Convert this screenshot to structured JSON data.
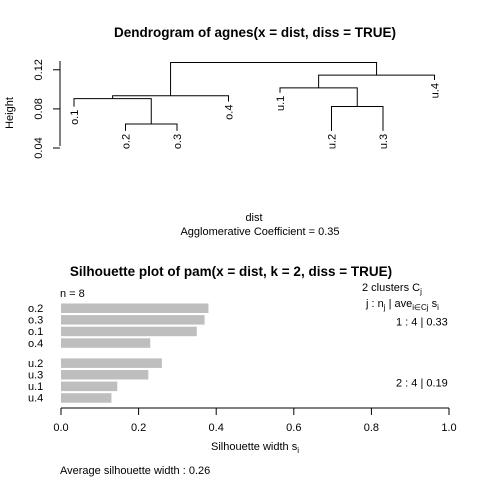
{
  "chart_data": [
    {
      "type": "dendrogram",
      "title": "Dendrogram of  agnes(x = dist, diss = TRUE)",
      "ylabel": "Height",
      "xlabel": "dist",
      "sub": "Agglomerative Coefficient =  0.35",
      "yticks": [
        "0.04",
        "0.08",
        "0.12"
      ],
      "ylim": [
        0.04,
        0.13
      ],
      "leaves": [
        {
          "label": "o.1",
          "h": 0.0823
        },
        {
          "label": "o.2",
          "h": 0.0575
        },
        {
          "label": "o.3",
          "h": 0.0575
        },
        {
          "label": "o.4",
          "h": 0.0875
        },
        {
          "label": "u.1",
          "h": 0.0965
        },
        {
          "label": "u.2",
          "h": 0.0575
        },
        {
          "label": "u.3",
          "h": 0.0575
        },
        {
          "label": "u.4",
          "h": 0.1095
        }
      ],
      "merges": [
        {
          "a": "L1",
          "b": "L2",
          "height": 0.0645,
          "id": "m1"
        },
        {
          "a": "L5",
          "b": "L6",
          "height": 0.0825,
          "id": "m2"
        },
        {
          "a": "L0",
          "b": "m1",
          "height": 0.0905,
          "id": "m3"
        },
        {
          "a": "L4",
          "b": "m2",
          "height": 0.1015,
          "id": "m4"
        },
        {
          "a": "m3",
          "b": "L3",
          "height": 0.0935,
          "id": "m5"
        },
        {
          "a": "m4",
          "b": "L7",
          "height": 0.1145,
          "id": "m6"
        },
        {
          "a": "m5",
          "b": "m6",
          "height": 0.1275,
          "id": "m7"
        }
      ]
    },
    {
      "type": "bar",
      "orientation": "horizontal",
      "title": "Silhouette plot of pam(x = dist, k = 2, diss = TRUE)",
      "n_label": "n = 8",
      "clusters_label": "2  clusters  C",
      "clusters_sub": "j",
      "header_label": "j :  n",
      "header_j": "j",
      "header_ave": " | ave",
      "header_sub": "i∈Cj",
      "header_s": "  s",
      "header_si": "i",
      "categories": [
        "o.2",
        "o.3",
        "o.1",
        "o.4",
        "u.2",
        "u.3",
        "u.1",
        "u.4"
      ],
      "values": [
        0.38,
        0.37,
        0.35,
        0.23,
        0.26,
        0.225,
        0.145,
        0.13
      ],
      "groups": [
        {
          "members": [
            "o.2",
            "o.3",
            "o.1",
            "o.4"
          ],
          "label": "1 :   4  |  0.33"
        },
        {
          "members": [
            "u.2",
            "u.3",
            "u.1",
            "u.4"
          ],
          "label": "2 :   4  |  0.19"
        }
      ],
      "xlabel": "Silhouette width s",
      "xlabel_sub": "i",
      "xlim": [
        0,
        1
      ],
      "xticks": [
        "0.0",
        "0.2",
        "0.4",
        "0.6",
        "0.8",
        "1.0"
      ],
      "avg_label": "Average silhouette width :  0.26",
      "bar_color": "#bebebe"
    }
  ]
}
